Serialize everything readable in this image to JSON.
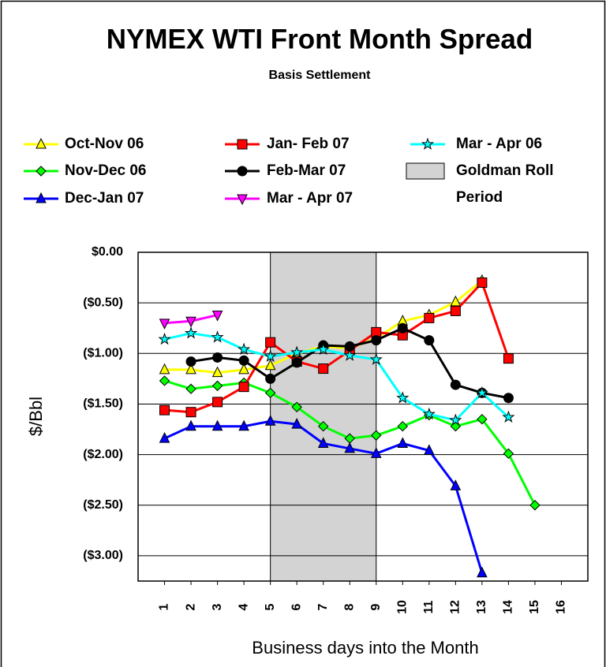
{
  "chart_data": {
    "type": "line",
    "title": "NYMEX WTI Front Month Spread",
    "subtitle": "Basis Settlement",
    "x_label": "Business days into the Month",
    "y_label": "$/Bbl",
    "x": [
      1,
      2,
      3,
      4,
      5,
      6,
      7,
      8,
      9,
      10,
      11,
      12,
      13,
      14,
      15,
      16
    ],
    "xlim": [
      0,
      17
    ],
    "xticks": [
      1,
      2,
      3,
      4,
      5,
      6,
      7,
      8,
      9,
      10,
      11,
      12,
      13,
      14,
      15,
      16
    ],
    "ylim": [
      -3.25,
      0
    ],
    "yticks": [
      {
        "value": 0,
        "label": "$0.00"
      },
      {
        "value": -0.5,
        "label": "($0.50)"
      },
      {
        "value": -1,
        "label": "($1.00)"
      },
      {
        "value": -1.5,
        "label": "($1.50)"
      },
      {
        "value": -2,
        "label": "($2.00)"
      },
      {
        "value": -2.5,
        "label": "($2.50)"
      },
      {
        "value": -3,
        "label": "($3.00)"
      }
    ],
    "grid": true,
    "shaded_region": {
      "label_lines": [
        "Goldman Roll",
        "Period"
      ],
      "x": [
        5,
        9
      ],
      "color": "#d3d3d3"
    },
    "series": [
      {
        "name": "Oct-Nov 06",
        "color": "#ffff00",
        "marker": "triangle",
        "values": [
          -1.16,
          -1.16,
          -1.19,
          -1.16,
          -1.12,
          -1.0,
          -0.93,
          -0.95,
          -0.85,
          -0.68,
          -0.62,
          -0.49,
          -0.28,
          null,
          null,
          null
        ]
      },
      {
        "name": "Nov-Dec 06",
        "color": "#00ff00",
        "marker": "diamond",
        "values": [
          -1.27,
          -1.35,
          -1.32,
          -1.29,
          -1.39,
          -1.53,
          -1.72,
          -1.84,
          -1.81,
          -1.72,
          -1.61,
          -1.72,
          -1.65,
          -1.99,
          -2.5,
          null
        ]
      },
      {
        "name": "Dec-Jan 07",
        "color": "#0000ff",
        "marker": "triangle",
        "values": [
          -1.84,
          -1.72,
          -1.72,
          -1.72,
          -1.67,
          -1.7,
          -1.89,
          -1.94,
          -1.99,
          -1.89,
          -1.96,
          -2.31,
          -3.17,
          null,
          null,
          null
        ]
      },
      {
        "name": "Jan- Feb 07",
        "color": "#ff0000",
        "marker": "square",
        "values": [
          -1.56,
          -1.58,
          -1.48,
          -1.33,
          -0.89,
          -1.08,
          -1.15,
          -0.97,
          -0.79,
          -0.82,
          -0.65,
          -0.58,
          -0.3,
          -1.05,
          null,
          null
        ]
      },
      {
        "name": "Feb-Mar 07",
        "color": "#000000",
        "marker": "circle",
        "values": [
          null,
          -1.08,
          -1.04,
          -1.07,
          -1.25,
          -1.09,
          -0.92,
          -0.93,
          -0.87,
          -0.75,
          -0.87,
          -1.31,
          -1.39,
          -1.44,
          null,
          null
        ]
      },
      {
        "name": "Mar - Apr 07",
        "color": "#ff00ff",
        "marker": "triangle-down",
        "values": [
          -0.7,
          -0.68,
          -0.62,
          null,
          null,
          null,
          null,
          null,
          null,
          null,
          null,
          null,
          null,
          null,
          null,
          null
        ]
      },
      {
        "name": "Mar - Apr 06",
        "color": "#00ffff",
        "marker": "star",
        "values": [
          -0.86,
          -0.8,
          -0.84,
          -0.96,
          -1.03,
          -0.99,
          -0.96,
          -1.02,
          -1.06,
          -1.44,
          -1.6,
          -1.66,
          -1.39,
          -1.63,
          null,
          null
        ]
      }
    ]
  }
}
